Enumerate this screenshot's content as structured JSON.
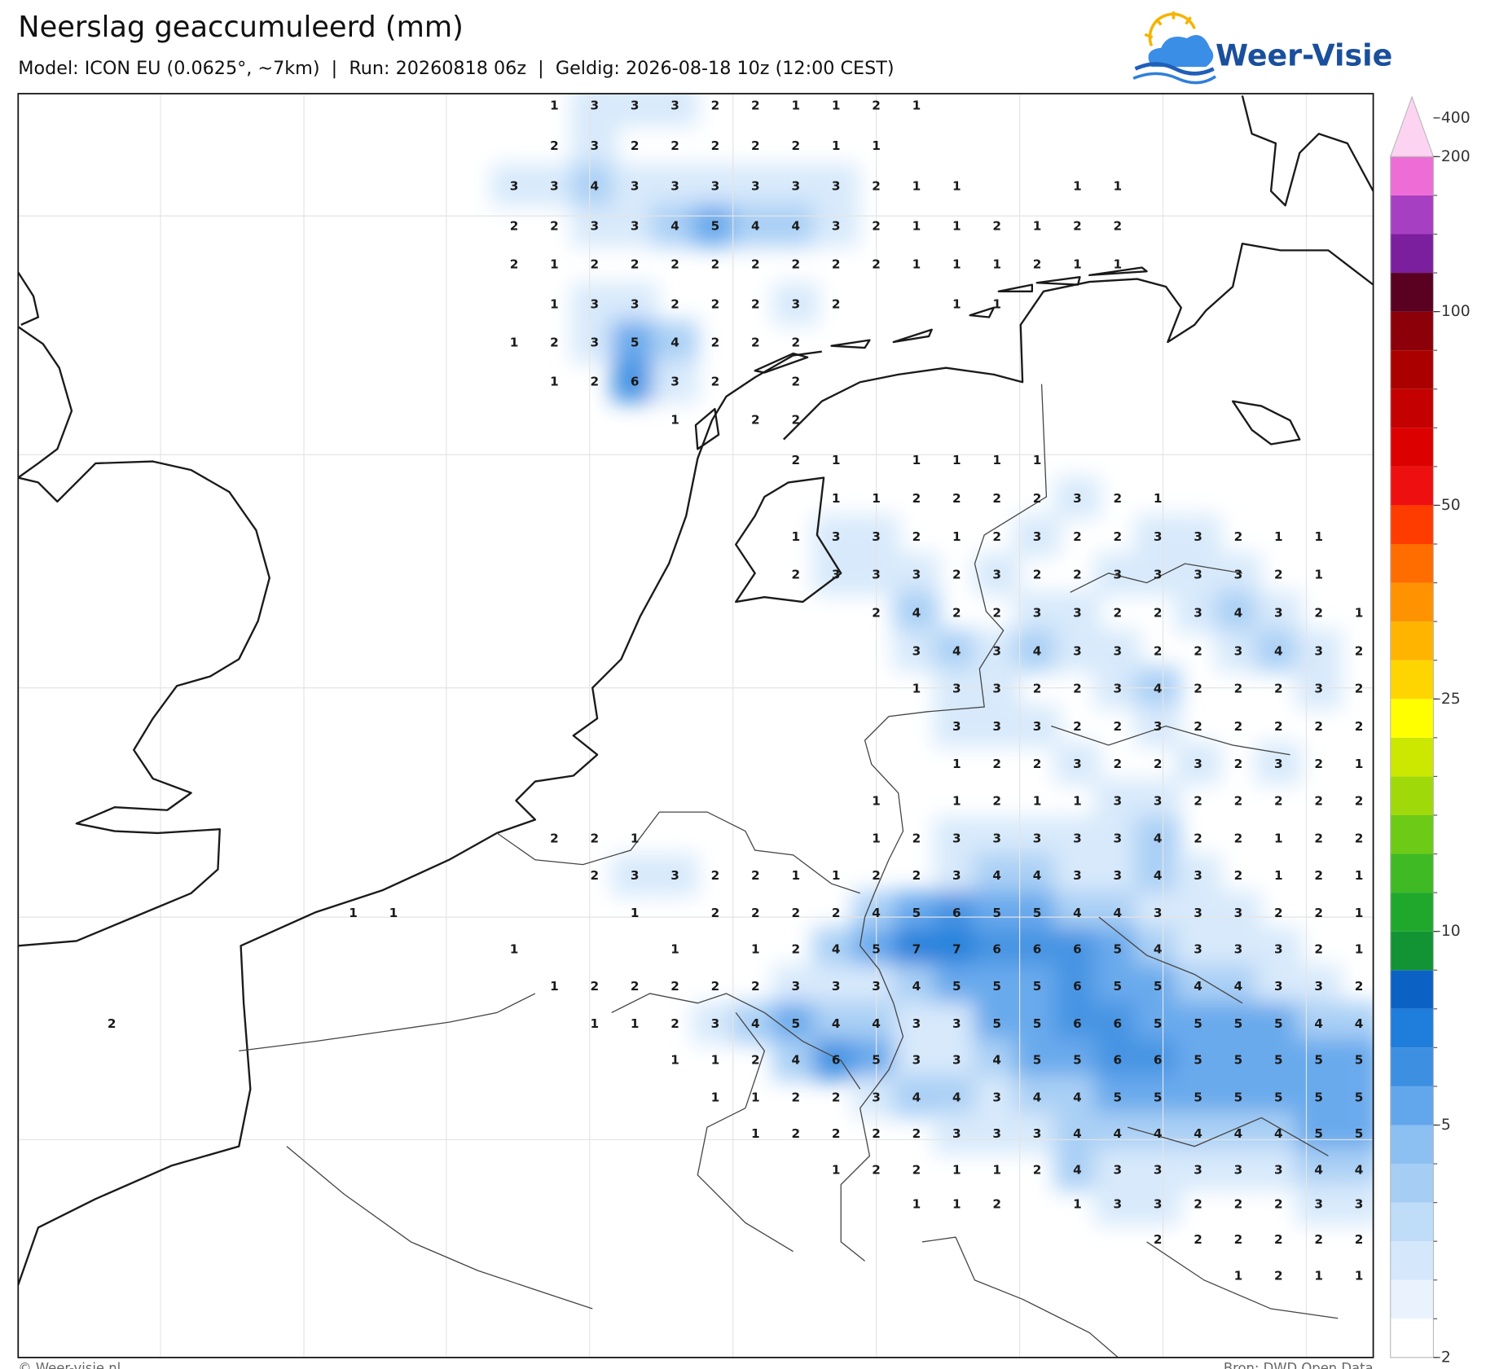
{
  "header": {
    "title": "Neerslag geaccumuleerd (mm)",
    "subtitle": "Model: ICON EU (0.0625°, ~7km)  |  Run: 20260818 06z  |  Geldig: 2026-08-18 10z (12:00 CEST)"
  },
  "logo": {
    "text": "Weer-Visie"
  },
  "map": {
    "grid": [
      [
        null,
        null,
        null,
        null,
        null,
        null,
        null,
        null,
        null,
        null,
        null,
        1,
        3,
        3,
        3,
        2,
        2,
        1,
        1,
        2,
        1,
        null,
        null,
        null,
        null,
        null,
        null,
        null,
        null,
        null,
        null,
        null
      ],
      [
        null,
        null,
        null,
        null,
        null,
        null,
        null,
        null,
        null,
        null,
        null,
        2,
        3,
        2,
        2,
        2,
        2,
        2,
        1,
        1,
        null,
        null,
        null,
        null,
        null,
        null,
        null,
        null,
        null,
        null,
        null,
        null
      ],
      [
        null,
        null,
        null,
        null,
        null,
        null,
        null,
        null,
        null,
        null,
        3,
        3,
        4,
        3,
        3,
        3,
        3,
        3,
        3,
        2,
        1,
        1,
        null,
        null,
        1,
        1,
        null,
        null,
        null,
        null,
        null,
        null
      ],
      [
        null,
        null,
        null,
        null,
        null,
        null,
        null,
        null,
        null,
        null,
        2,
        2,
        3,
        3,
        4,
        5,
        4,
        4,
        3,
        2,
        1,
        1,
        2,
        1,
        2,
        2,
        null,
        null,
        null,
        null,
        null,
        null
      ],
      [
        null,
        null,
        null,
        null,
        null,
        null,
        null,
        null,
        null,
        null,
        2,
        1,
        2,
        2,
        2,
        2,
        2,
        2,
        2,
        2,
        1,
        1,
        1,
        2,
        1,
        1,
        null,
        null,
        null,
        null,
        null,
        null
      ],
      [
        null,
        null,
        null,
        null,
        null,
        null,
        null,
        null,
        null,
        null,
        null,
        1,
        3,
        3,
        2,
        2,
        2,
        3,
        2,
        null,
        null,
        1,
        1,
        null,
        null,
        null,
        null,
        null,
        null,
        null,
        null,
        null
      ],
      [
        null,
        null,
        null,
        null,
        null,
        null,
        null,
        null,
        null,
        null,
        1,
        2,
        3,
        5,
        4,
        2,
        2,
        2,
        null,
        null,
        null,
        null,
        null,
        null,
        null,
        null,
        null,
        null,
        null,
        null,
        null,
        null
      ],
      [
        null,
        null,
        null,
        null,
        null,
        null,
        null,
        null,
        null,
        null,
        null,
        1,
        2,
        6,
        3,
        2,
        null,
        2,
        null,
        null,
        null,
        null,
        null,
        null,
        null,
        null,
        null,
        null,
        null,
        null,
        null,
        null
      ],
      [
        null,
        null,
        null,
        null,
        null,
        null,
        null,
        null,
        null,
        null,
        null,
        null,
        null,
        null,
        1,
        null,
        2,
        2,
        null,
        null,
        null,
        null,
        null,
        null,
        null,
        null,
        null,
        null,
        null,
        null,
        null,
        null
      ],
      [
        null,
        null,
        null,
        null,
        null,
        null,
        null,
        null,
        null,
        null,
        null,
        null,
        null,
        null,
        null,
        null,
        null,
        2,
        1,
        null,
        1,
        1,
        1,
        1,
        null,
        null,
        null,
        null,
        null,
        null,
        null,
        null
      ],
      [
        null,
        null,
        null,
        null,
        null,
        null,
        null,
        null,
        null,
        null,
        null,
        null,
        null,
        null,
        null,
        null,
        null,
        null,
        1,
        1,
        2,
        2,
        2,
        2,
        3,
        2,
        1,
        null,
        null,
        null,
        null,
        null
      ],
      [
        null,
        null,
        null,
        null,
        null,
        null,
        null,
        null,
        null,
        null,
        null,
        null,
        null,
        null,
        null,
        null,
        null,
        1,
        3,
        3,
        2,
        1,
        2,
        3,
        2,
        2,
        3,
        3,
        2,
        1,
        1,
        null
      ],
      [
        null,
        null,
        null,
        null,
        null,
        null,
        null,
        null,
        null,
        null,
        null,
        null,
        null,
        null,
        null,
        null,
        null,
        2,
        3,
        3,
        3,
        2,
        3,
        2,
        2,
        3,
        3,
        3,
        3,
        2,
        1,
        null
      ],
      [
        null,
        null,
        null,
        null,
        null,
        null,
        null,
        null,
        null,
        null,
        null,
        null,
        null,
        null,
        null,
        null,
        null,
        null,
        null,
        2,
        4,
        2,
        2,
        3,
        3,
        2,
        2,
        3,
        4,
        3,
        2,
        1
      ],
      [
        null,
        null,
        null,
        null,
        null,
        null,
        null,
        null,
        null,
        null,
        null,
        null,
        null,
        null,
        null,
        null,
        null,
        null,
        null,
        null,
        3,
        4,
        3,
        4,
        3,
        3,
        2,
        2,
        3,
        4,
        3,
        2
      ],
      [
        null,
        null,
        null,
        null,
        null,
        null,
        null,
        null,
        null,
        null,
        null,
        null,
        null,
        null,
        null,
        null,
        null,
        null,
        null,
        null,
        1,
        3,
        3,
        2,
        2,
        3,
        4,
        2,
        2,
        2,
        3,
        2
      ],
      [
        null,
        null,
        null,
        null,
        null,
        null,
        null,
        null,
        null,
        null,
        null,
        null,
        null,
        null,
        null,
        null,
        null,
        null,
        null,
        null,
        null,
        3,
        3,
        3,
        2,
        2,
        3,
        2,
        2,
        2,
        2,
        2
      ],
      [
        null,
        null,
        null,
        null,
        null,
        null,
        null,
        null,
        null,
        null,
        null,
        null,
        null,
        null,
        null,
        null,
        null,
        null,
        null,
        null,
        null,
        1,
        2,
        2,
        3,
        2,
        2,
        3,
        2,
        3,
        2,
        1
      ],
      [
        null,
        null,
        null,
        null,
        null,
        null,
        null,
        null,
        null,
        null,
        null,
        null,
        null,
        null,
        null,
        null,
        null,
        null,
        null,
        1,
        null,
        1,
        2,
        1,
        1,
        3,
        3,
        2,
        2,
        2,
        2,
        2
      ],
      [
        null,
        null,
        null,
        null,
        null,
        null,
        null,
        null,
        null,
        null,
        null,
        2,
        2,
        1,
        null,
        null,
        null,
        null,
        null,
        1,
        2,
        3,
        3,
        3,
        3,
        3,
        4,
        2,
        2,
        1,
        2,
        2
      ],
      [
        null,
        null,
        null,
        null,
        null,
        null,
        null,
        null,
        null,
        null,
        null,
        null,
        2,
        3,
        3,
        2,
        2,
        1,
        1,
        2,
        2,
        3,
        4,
        4,
        3,
        3,
        4,
        3,
        2,
        1,
        2,
        1
      ],
      [
        null,
        null,
        null,
        null,
        null,
        null,
        1,
        1,
        null,
        null,
        null,
        null,
        null,
        1,
        null,
        2,
        2,
        2,
        2,
        4,
        5,
        6,
        5,
        5,
        4,
        4,
        3,
        3,
        3,
        2,
        2,
        1
      ],
      [
        null,
        null,
        null,
        null,
        null,
        null,
        null,
        null,
        null,
        null,
        1,
        null,
        null,
        null,
        1,
        null,
        1,
        2,
        4,
        5,
        7,
        7,
        6,
        6,
        6,
        5,
        4,
        3,
        3,
        3,
        2,
        1
      ],
      [
        null,
        null,
        null,
        null,
        null,
        null,
        null,
        null,
        null,
        null,
        null,
        1,
        2,
        2,
        2,
        2,
        2,
        3,
        3,
        3,
        4,
        5,
        5,
        5,
        6,
        5,
        5,
        4,
        4,
        3,
        3,
        2
      ],
      [
        2,
        null,
        null,
        null,
        null,
        null,
        null,
        null,
        null,
        null,
        null,
        null,
        1,
        1,
        2,
        3,
        4,
        5,
        4,
        4,
        3,
        3,
        5,
        5,
        6,
        6,
        5,
        5,
        5,
        5,
        4,
        4
      ],
      [
        null,
        null,
        null,
        null,
        null,
        null,
        null,
        null,
        null,
        null,
        null,
        null,
        null,
        null,
        1,
        1,
        2,
        4,
        6,
        5,
        3,
        3,
        4,
        5,
        5,
        6,
        6,
        5,
        5,
        5,
        5,
        5
      ],
      [
        null,
        null,
        null,
        null,
        null,
        null,
        null,
        null,
        null,
        null,
        null,
        null,
        null,
        null,
        null,
        1,
        1,
        2,
        2,
        3,
        4,
        4,
        3,
        4,
        4,
        5,
        5,
        5,
        5,
        5,
        5,
        5
      ],
      [
        null,
        null,
        null,
        null,
        null,
        null,
        null,
        null,
        null,
        null,
        null,
        null,
        null,
        null,
        null,
        null,
        1,
        2,
        2,
        2,
        2,
        3,
        3,
        3,
        4,
        4,
        4,
        4,
        4,
        4,
        5,
        5
      ],
      [
        null,
        null,
        null,
        null,
        null,
        null,
        null,
        null,
        null,
        null,
        null,
        null,
        null,
        null,
        null,
        null,
        null,
        null,
        1,
        2,
        2,
        1,
        1,
        2,
        4,
        3,
        3,
        3,
        3,
        3,
        4,
        4
      ],
      [
        null,
        null,
        null,
        null,
        null,
        null,
        null,
        null,
        null,
        null,
        null,
        null,
        null,
        null,
        null,
        null,
        null,
        null,
        null,
        null,
        1,
        1,
        2,
        null,
        1,
        3,
        3,
        2,
        2,
        2,
        3,
        3
      ],
      [
        null,
        null,
        null,
        null,
        null,
        null,
        null,
        null,
        null,
        null,
        null,
        null,
        null,
        null,
        null,
        null,
        null,
        null,
        null,
        null,
        null,
        null,
        null,
        null,
        null,
        null,
        2,
        2,
        2,
        2,
        2,
        2
      ],
      [
        null,
        null,
        null,
        null,
        null,
        null,
        null,
        null,
        null,
        null,
        null,
        null,
        null,
        null,
        null,
        null,
        null,
        null,
        null,
        null,
        null,
        null,
        null,
        null,
        null,
        null,
        null,
        null,
        1,
        2,
        1,
        1
      ]
    ]
  },
  "colorbar": {
    "levels": [
      2,
      2.5,
      3,
      3.5,
      4,
      4.5,
      5,
      6,
      7,
      8,
      9,
      10,
      12,
      14,
      16,
      18,
      20,
      25,
      30,
      35,
      40,
      45,
      50,
      60,
      70,
      80,
      90,
      100,
      125,
      150,
      175,
      200,
      400
    ],
    "colors": [
      "#ffffff",
      "#eaf3fd",
      "#d5e8fb",
      "#bfdcf8",
      "#a6cef5",
      "#8cbff2",
      "#62a6ec",
      "#3d8fe2",
      "#1f7ddb",
      "#0b62c4",
      "#129434",
      "#20a82c",
      "#3fba24",
      "#6dca16",
      "#a0d90a",
      "#cde800",
      "#ffff00",
      "#ffd500",
      "#ffb400",
      "#ff9200",
      "#ff6c00",
      "#ff3c00",
      "#ee1010",
      "#dd0000",
      "#c40000",
      "#aa0000",
      "#8c000a",
      "#5a0020",
      "#7b1f9f",
      "#a73fc2",
      "#ee6cd6",
      "#fcd4f2"
    ],
    "ticks": [
      2,
      5,
      10,
      25,
      50,
      100,
      200,
      400
    ]
  },
  "footer": {
    "left": "© Weer-visie.nl",
    "right": "Bron: DWD Open Data"
  }
}
